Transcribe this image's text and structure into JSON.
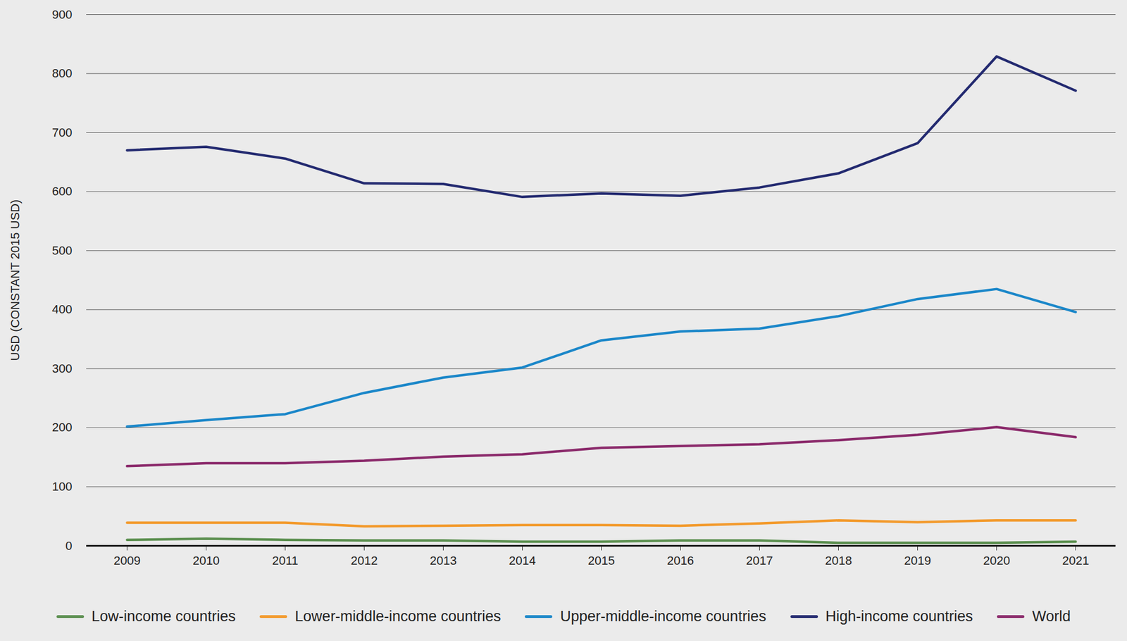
{
  "chart_data": {
    "type": "line",
    "y_label": "USD (CONSTANT 2015 USD)",
    "categories": [
      "2009",
      "2010",
      "2011",
      "2012",
      "2013",
      "2014",
      "2015",
      "2016",
      "2017",
      "2018",
      "2019",
      "2020",
      "2021"
    ],
    "series": [
      {
        "name": "Low-income countries",
        "color": "#5b8f4f",
        "values": [
          10,
          12,
          10,
          9,
          9,
          7,
          7,
          9,
          9,
          5,
          5,
          5,
          7
        ]
      },
      {
        "name": "Lower-middle-income countries",
        "color": "#f39a2c",
        "values": [
          39,
          39,
          39,
          33,
          34,
          35,
          35,
          34,
          38,
          43,
          40,
          43,
          43
        ]
      },
      {
        "name": "Upper-middle-income countries",
        "color": "#1b87c9",
        "values": [
          202,
          213,
          223,
          259,
          285,
          302,
          348,
          363,
          368,
          389,
          418,
          435,
          396
        ]
      },
      {
        "name": "High-income countries",
        "color": "#232a70",
        "values": [
          670,
          676,
          656,
          614,
          613,
          591,
          597,
          593,
          607,
          631,
          682,
          829,
          771
        ]
      },
      {
        "name": "World",
        "color": "#8b2a6b",
        "values": [
          135,
          140,
          140,
          144,
          151,
          155,
          166,
          169,
          172,
          179,
          188,
          201,
          184
        ]
      }
    ],
    "ylim": [
      0,
      900
    ],
    "yticks": [
      0,
      100,
      200,
      300,
      400,
      500,
      600,
      700,
      800,
      900
    ],
    "grid": true,
    "legend": "bottom"
  }
}
